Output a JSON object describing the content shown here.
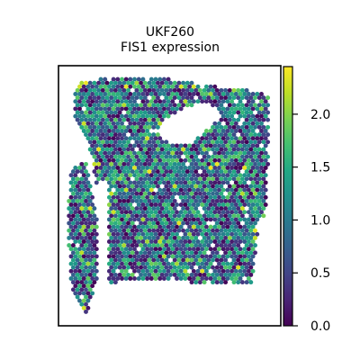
{
  "chart_data": {
    "type": "scatter",
    "subtype": "spatial hexagonal spot map",
    "title": "UKF260",
    "subtitle": "FIS1 expression",
    "colormap": "viridis",
    "color_scale": {
      "min": 0.0,
      "max": 2.45,
      "ticks": [
        0.0,
        0.5,
        1.0,
        1.5,
        2.0
      ],
      "tick_labels": [
        "0.0",
        "0.5",
        "1.0",
        "1.5",
        "2.0"
      ]
    },
    "axes": {
      "x_ticks": false,
      "y_ticks": false,
      "grid": false
    },
    "legend": "colorbar-right"
  },
  "colors": {
    "viridis": [
      "#440154",
      "#482475",
      "#414487",
      "#355f8d",
      "#2a788e",
      "#21918c",
      "#22a884",
      "#44bf70",
      "#7ad151",
      "#bddf26",
      "#fde725"
    ]
  }
}
